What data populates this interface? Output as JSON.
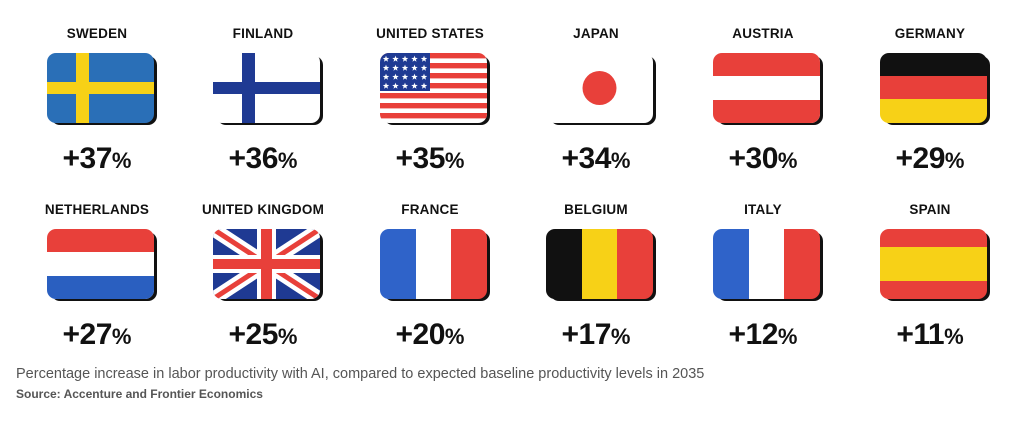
{
  "chart_data": {
    "type": "table",
    "unit": "%",
    "entries": [
      {
        "country": "SWEDEN",
        "label": "+37",
        "value": 37,
        "flag": "sweden-flag"
      },
      {
        "country": "FINLAND",
        "label": "+36",
        "value": 36,
        "flag": "finland-flag"
      },
      {
        "country": "UNITED STATES",
        "label": "+35",
        "value": 35,
        "flag": "united-states-flag"
      },
      {
        "country": "JAPAN",
        "label": "+34",
        "value": 34,
        "flag": "japan-flag"
      },
      {
        "country": "AUSTRIA",
        "label": "+30",
        "value": 30,
        "flag": "austria-flag"
      },
      {
        "country": "GERMANY",
        "label": "+29",
        "value": 29,
        "flag": "germany-flag"
      },
      {
        "country": "NETHERLANDS",
        "label": "+27",
        "value": 27,
        "flag": "netherlands-flag"
      },
      {
        "country": "UNITED KINGDOM",
        "label": "+25",
        "value": 25,
        "flag": "united-kingdom-flag"
      },
      {
        "country": "FRANCE",
        "label": "+20",
        "value": 20,
        "flag": "france-flag"
      },
      {
        "country": "BELGIUM",
        "label": "+17",
        "value": 17,
        "flag": "belgium-flag"
      },
      {
        "country": "ITALY",
        "label": "+12",
        "value": 12,
        "flag": "italy-flag"
      },
      {
        "country": "SPAIN",
        "label": "+11",
        "value": 11,
        "flag": "spain-flag"
      }
    ]
  },
  "caption": "Percentage increase in labor productivity with AI, compared to expected baseline productivity levels in 2035",
  "source": "Source: Accenture and Frontier Economics",
  "colors": {
    "red": "#e8403a",
    "blue_dark": "#1f3a93",
    "blue_france": "#2f63c9",
    "yellow": "#f7d117",
    "black": "#111111",
    "green": "#1f9a55"
  }
}
